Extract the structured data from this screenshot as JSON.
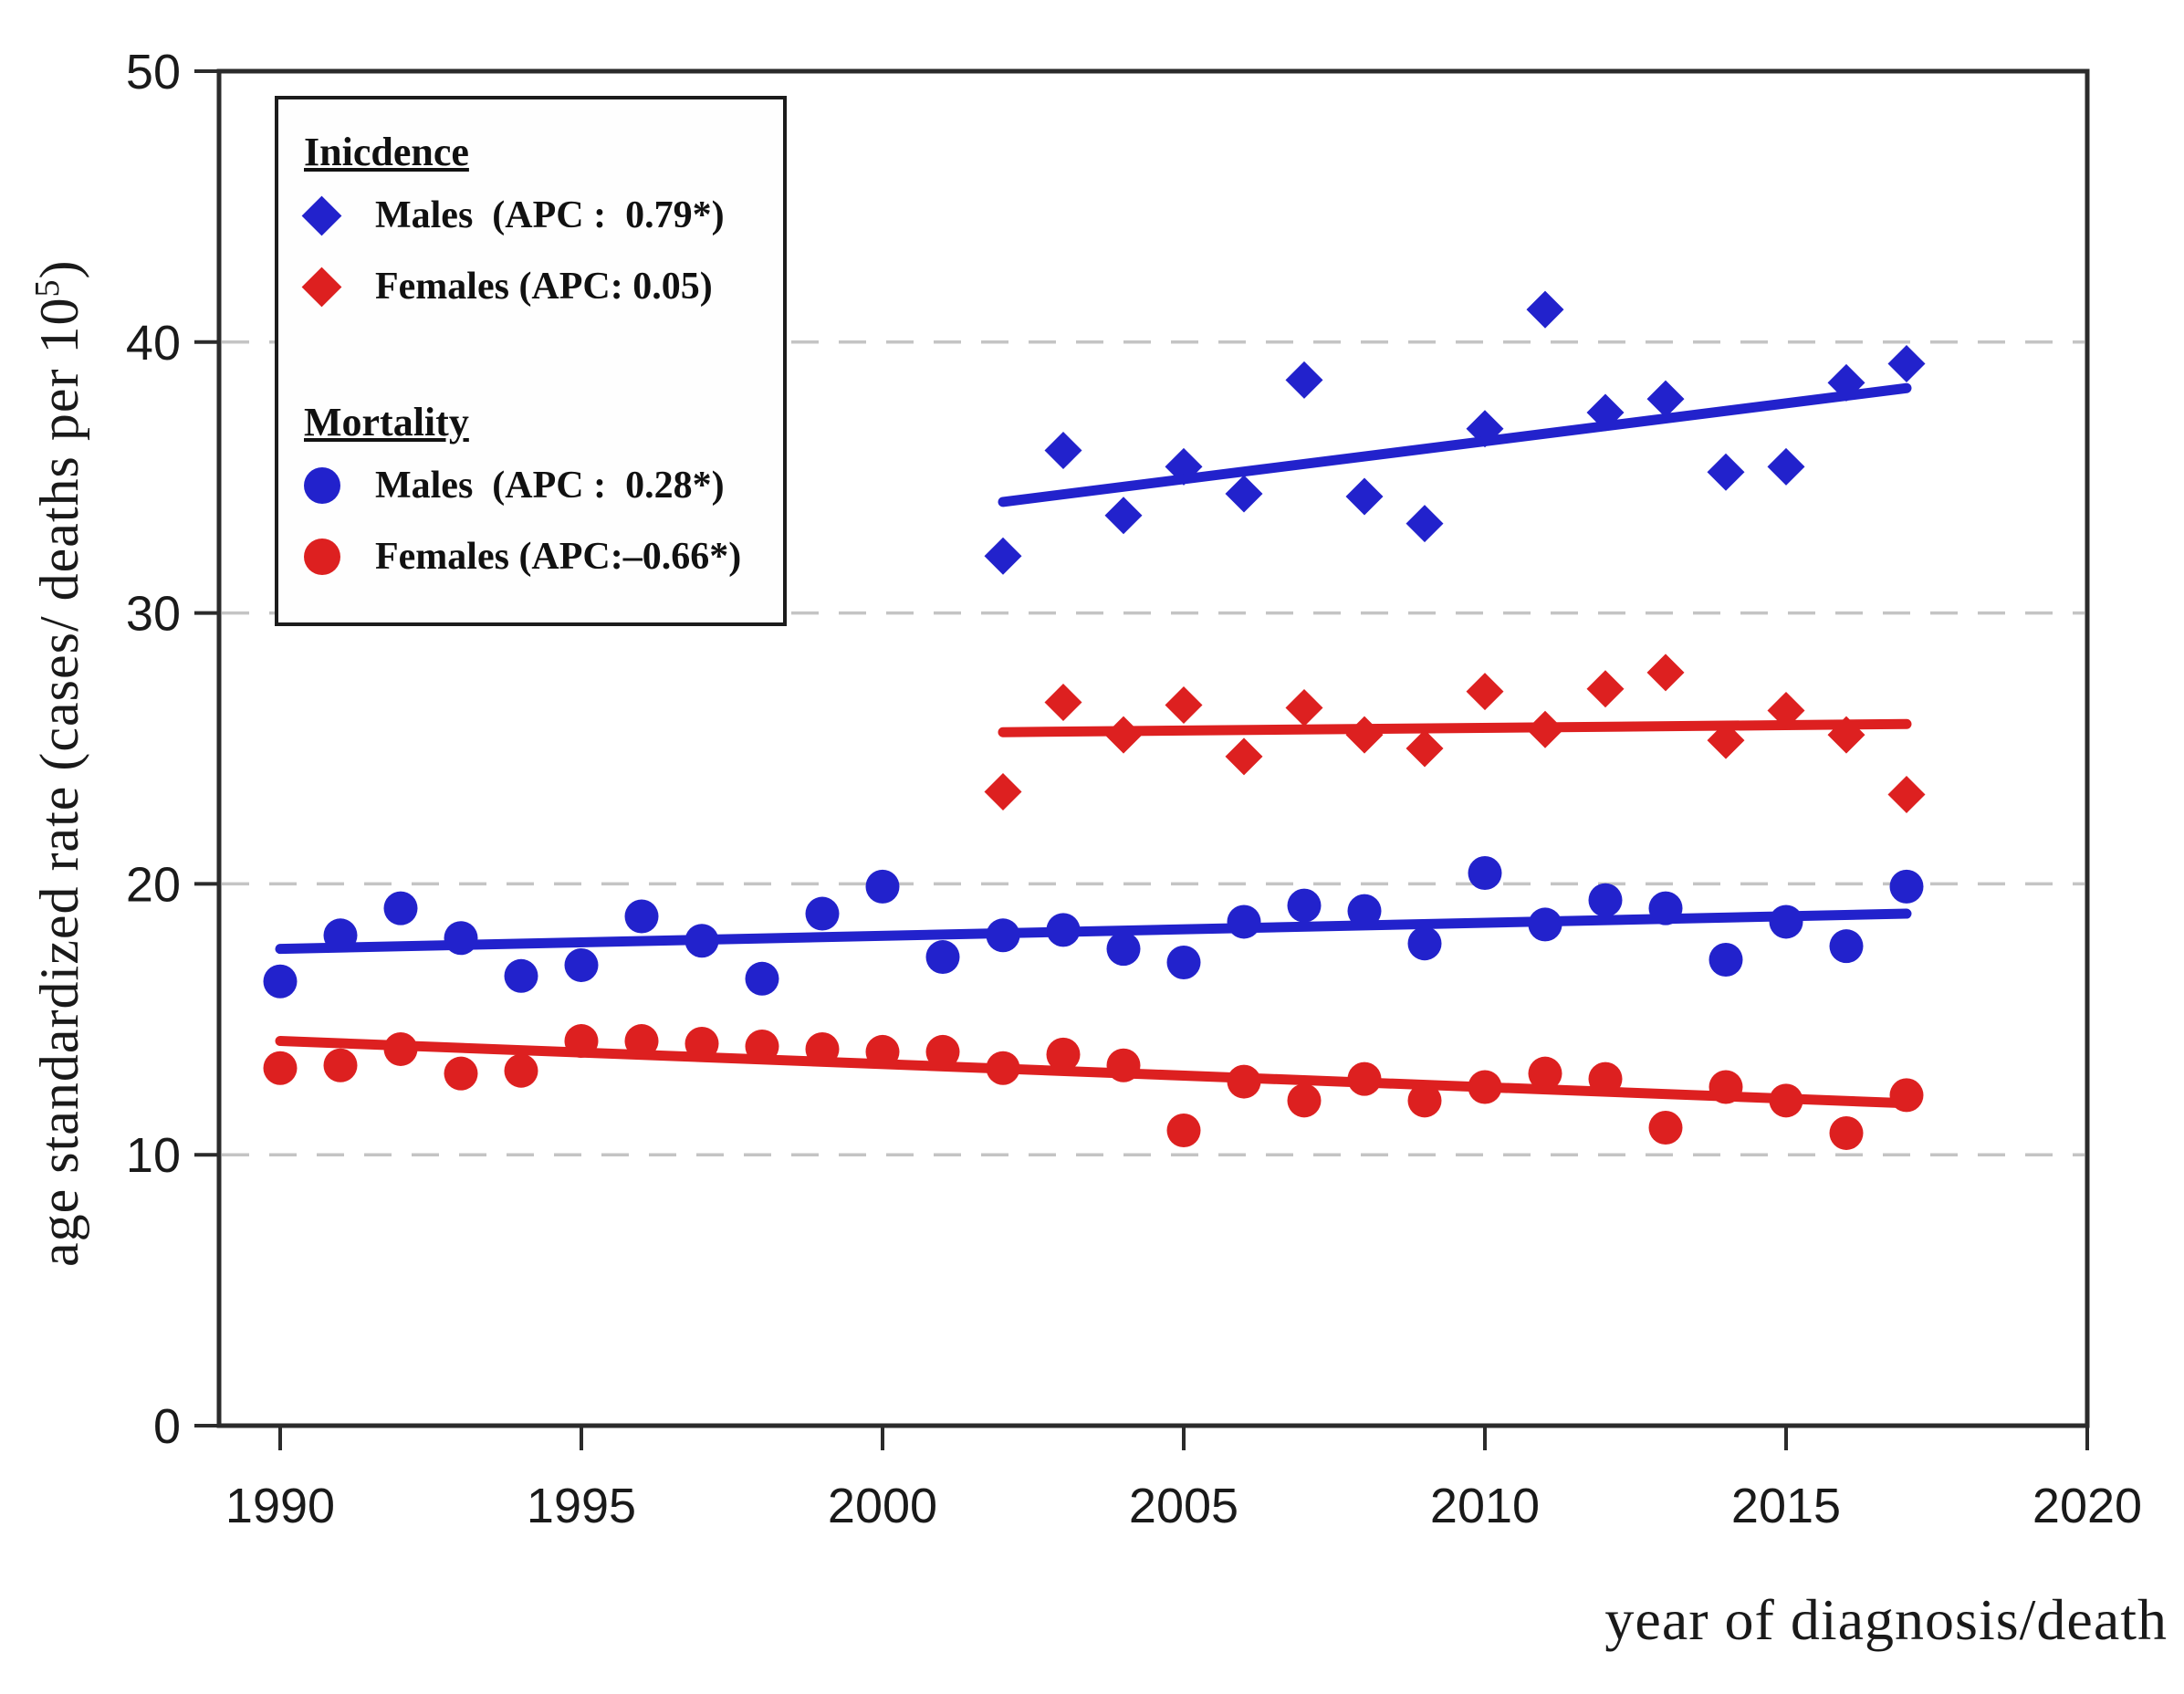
{
  "figure": {
    "background": "#ffffff"
  },
  "colors": {
    "male": "#2222cc",
    "female": "#dd2020",
    "grid": "#c4c4c4",
    "axis": "#2b2b2b",
    "text": "#1a1a1a"
  },
  "legend": {
    "section1": "Inicdence",
    "section2": "Mortality",
    "items": [
      {
        "label": "Males  (APC :  0.79*)",
        "marker": "diamond",
        "color": "#2222cc"
      },
      {
        "label": "Females (APC: 0.05)",
        "marker": "diamond",
        "color": "#dd2020"
      },
      {
        "label": "Males  (APC :  0.28*)",
        "marker": "circle",
        "color": "#2222cc"
      },
      {
        "label": "Females (APC:–0.66*)",
        "marker": "circle",
        "color": "#dd2020"
      }
    ]
  },
  "axes": {
    "x": {
      "title": "year of diagnosis/death",
      "tick_labels": [
        "1990",
        "1995",
        "2000",
        "2005",
        "2010",
        "2015",
        "2020"
      ],
      "tick_values": [
        1990,
        1995,
        2000,
        2005,
        2010,
        2015,
        2020
      ]
    },
    "y": {
      "title_main": "age standardized rate  (cases/ deaths per 10",
      "title_sup": "5",
      "title_close": ")",
      "tick_labels": [
        "0",
        "10",
        "20",
        "30",
        "40",
        "50"
      ],
      "tick_values": [
        0,
        10,
        20,
        30,
        40,
        50
      ]
    }
  },
  "chart_data": {
    "type": "scatter",
    "title": "",
    "xlabel": "year of diagnosis/death",
    "ylabel": "age standardized rate (cases/ deaths per 10^5)",
    "xlim": [
      1989,
      2020
    ],
    "ylim": [
      0,
      50
    ],
    "gridlines_y": [
      10,
      20,
      30,
      40
    ],
    "grid": "dashed-horizontal",
    "legend_position": "top-left-inside",
    "series": [
      {
        "name": "Incidence Males (APC : 0.79*)",
        "marker": "diamond",
        "color": "#2222cc",
        "x": [
          2002,
          2003,
          2004,
          2005,
          2006,
          2007,
          2008,
          2009,
          2010,
          2011,
          2012,
          2013,
          2014,
          2015,
          2016,
          2017
        ],
        "y": [
          32.1,
          36.0,
          33.6,
          35.4,
          34.4,
          38.6,
          34.3,
          33.3,
          36.8,
          41.2,
          37.4,
          37.9,
          35.2,
          35.4,
          38.5,
          39.2
        ]
      },
      {
        "name": "Incidence Females (APC: 0.05)",
        "marker": "diamond",
        "color": "#dd2020",
        "x": [
          2002,
          2003,
          2004,
          2005,
          2006,
          2007,
          2008,
          2009,
          2010,
          2011,
          2012,
          2013,
          2014,
          2015,
          2016,
          2017
        ],
        "y": [
          23.4,
          26.7,
          25.5,
          26.6,
          24.7,
          26.5,
          25.5,
          25.0,
          27.1,
          25.7,
          27.2,
          27.8,
          25.3,
          26.4,
          25.5,
          23.3
        ]
      },
      {
        "name": "Mortality Males (APC : 0.28*)",
        "marker": "circle",
        "color": "#2222cc",
        "x": [
          1990,
          1991,
          1992,
          1993,
          1994,
          1995,
          1996,
          1997,
          1998,
          1999,
          2000,
          2001,
          2002,
          2003,
          2004,
          2005,
          2006,
          2007,
          2008,
          2009,
          2010,
          2011,
          2012,
          2013,
          2014,
          2015,
          2016,
          2017
        ],
        "y": [
          16.4,
          18.1,
          19.1,
          18.0,
          16.6,
          17.0,
          18.8,
          17.9,
          16.5,
          18.9,
          19.9,
          17.3,
          18.1,
          18.3,
          17.6,
          17.1,
          18.6,
          19.2,
          19.0,
          17.8,
          20.4,
          18.5,
          19.4,
          19.1,
          17.2,
          18.6,
          17.7,
          19.9
        ]
      },
      {
        "name": "Mortality Females (APC:–0.66*)",
        "marker": "circle",
        "color": "#dd2020",
        "x": [
          1990,
          1991,
          1992,
          1993,
          1994,
          1995,
          1996,
          1997,
          1998,
          1999,
          2000,
          2001,
          2002,
          2003,
          2004,
          2005,
          2006,
          2007,
          2008,
          2009,
          2010,
          2011,
          2012,
          2013,
          2014,
          2015,
          2016,
          2017
        ],
        "y": [
          13.2,
          13.3,
          13.9,
          13.0,
          13.1,
          14.2,
          14.2,
          14.1,
          14.0,
          13.9,
          13.8,
          13.8,
          13.2,
          13.7,
          13.3,
          10.9,
          12.7,
          12.0,
          12.8,
          12.0,
          12.5,
          13.0,
          12.8,
          11.0,
          12.5,
          12.0,
          10.8,
          12.2
        ]
      }
    ],
    "trend_lines": [
      {
        "name": "incidence-males-trend",
        "color": "#2222cc",
        "x1": 2002,
        "y1": 34.1,
        "x2": 2017,
        "y2": 38.3
      },
      {
        "name": "incidence-females-trend",
        "color": "#dd2020",
        "x1": 2002,
        "y1": 25.6,
        "x2": 2017,
        "y2": 25.9
      },
      {
        "name": "mortality-males-trend",
        "color": "#2222cc",
        "x1": 1990,
        "y1": 17.6,
        "x2": 2017,
        "y2": 18.9
      },
      {
        "name": "mortality-females-trend",
        "color": "#dd2020",
        "x1": 1990,
        "y1": 14.2,
        "x2": 2017,
        "y2": 11.9
      }
    ]
  }
}
